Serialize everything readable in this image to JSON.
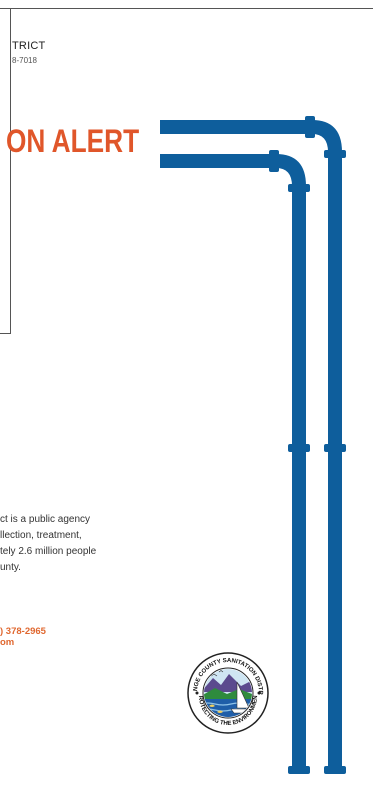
{
  "header": {
    "district_fragment": "TRICT",
    "phone_fragment": "8-7018"
  },
  "title": {
    "text_fragment": "ON ALERT"
  },
  "about": {
    "lines": [
      "ct is a public agency",
      "llection, treatment,",
      "tely 2.6 million people",
      "unty."
    ]
  },
  "contact": {
    "phone_fragment": ") 378-2965",
    "web_fragment": "om"
  },
  "seal": {
    "top_text": "ORANGE COUNTY SANITATION DISTRICT",
    "bottom_text": "PROTECTING THE ENVIRONMENT"
  },
  "colors": {
    "pipe": "#0e5e9c",
    "accent": "#e0562a",
    "contact": "#e06830"
  }
}
